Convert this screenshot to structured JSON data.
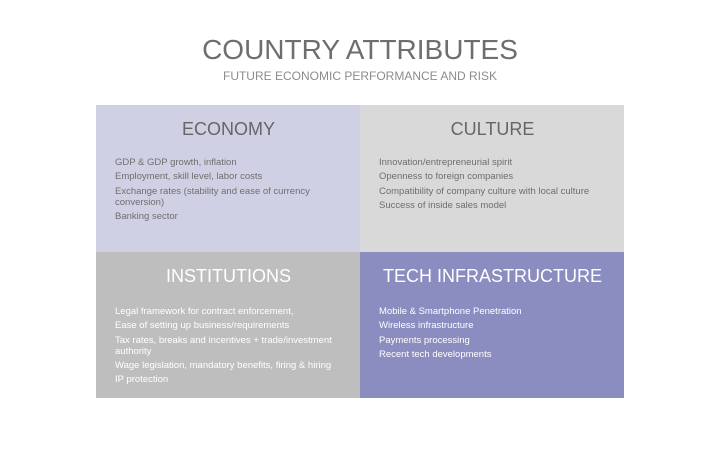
{
  "header": {
    "title": "COUNTRY ATTRIBUTES",
    "subtitle": "FUTURE ECONOMIC PERFORMANCE AND RISK"
  },
  "quadrants": {
    "economy": {
      "title": "ECONOMY",
      "items": [
        "GDP & GDP growth, inflation",
        "Employment, skill level, labor costs",
        "Exchange rates (stability and ease of currency conversion)",
        "Banking sector"
      ]
    },
    "culture": {
      "title": "CULTURE",
      "items": [
        "Innovation/entrepreneurial spirit",
        "Openness to foreign companies",
        "Compatibility of company culture with local culture",
        "Success of inside sales model"
      ]
    },
    "institutions": {
      "title": "INSTITUTIONS",
      "items": [
        "Legal framework for contract enforcement,",
        "Ease of setting up business/requirements",
        "Tax rates, breaks and incentives + trade/investment authority",
        "Wage legislation, mandatory benefits, firing & hiring",
        "IP protection"
      ]
    },
    "tech": {
      "title": "TECH INFRASTRUCTURE",
      "items": [
        "Mobile & Smartphone Penetration",
        "Wireless infrastructure",
        "Payments processing",
        "Recent tech developments"
      ]
    }
  },
  "colors": {
    "economy_bg": "#d0d0e4",
    "culture_bg": "#d9d9d9",
    "institutions_bg": "#bebebe",
    "tech_bg": "#8b8cbf"
  }
}
